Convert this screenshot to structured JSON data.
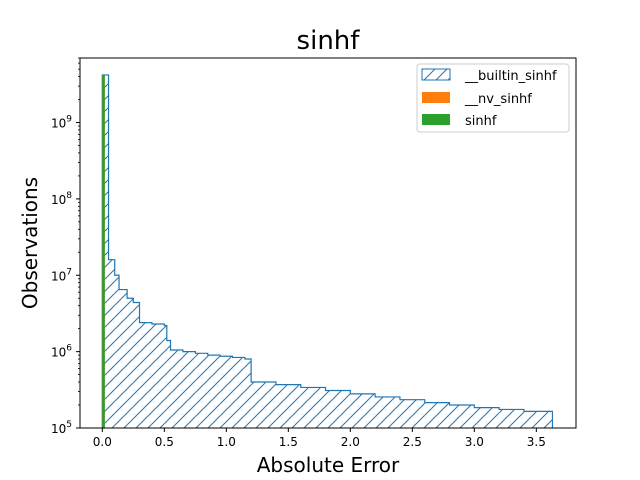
{
  "chart_data": {
    "type": "histogram",
    "title": "sinhf",
    "xlabel": "Absolute Error",
    "ylabel": "Observations",
    "yscale": "log",
    "xlim": [
      -0.18,
      3.82
    ],
    "ylim": [
      100000,
      7000000000
    ],
    "x_ticks": [
      0.0,
      0.5,
      1.0,
      1.5,
      2.0,
      2.5,
      3.0,
      3.5
    ],
    "x_tick_labels": [
      "0.0",
      "0.5",
      "1.0",
      "1.5",
      "2.0",
      "2.5",
      "3.0",
      "3.5"
    ],
    "y_ticks": [
      100000,
      1000000,
      10000000,
      100000000,
      1000000000
    ],
    "y_tick_labels": [
      {
        "base": "10",
        "exp": "5"
      },
      {
        "base": "10",
        "exp": "6"
      },
      {
        "base": "10",
        "exp": "7"
      },
      {
        "base": "10",
        "exp": "8"
      },
      {
        "base": "10",
        "exp": "9"
      }
    ],
    "legend_position": "top-right",
    "series": [
      {
        "name": "__builtin_sinhf",
        "style": "step-hatched",
        "color": "#1f77b4",
        "bin_edges": [
          0.0,
          0.05,
          0.1,
          0.135,
          0.2,
          0.25,
          0.3,
          0.4,
          0.5,
          0.52,
          0.55,
          0.65,
          0.75,
          0.85,
          0.95,
          1.05,
          1.15,
          1.2,
          1.4,
          1.6,
          1.8,
          2.0,
          2.2,
          2.4,
          2.6,
          2.8,
          3.0,
          3.2,
          3.4,
          3.63
        ],
        "counts": [
          4200000000,
          16000000,
          10000000,
          6500000,
          5000000,
          4400000,
          2400000,
          2300000,
          2200000,
          1400000,
          1050000,
          1000000,
          950000,
          900000,
          870000,
          840000,
          800000,
          400000,
          370000,
          340000,
          310000,
          280000,
          255000,
          235000,
          215000,
          200000,
          185000,
          175000,
          165000
        ]
      },
      {
        "name": "__nv_sinhf",
        "style": "bar",
        "color": "#ff7f0e",
        "bin_edges": [
          0.0,
          0.02
        ],
        "counts": [
          4200000000
        ]
      },
      {
        "name": "sinhf",
        "style": "bar",
        "color": "#2ca02c",
        "bin_edges": [
          0.0,
          0.02
        ],
        "counts": [
          4200000000
        ]
      }
    ]
  }
}
